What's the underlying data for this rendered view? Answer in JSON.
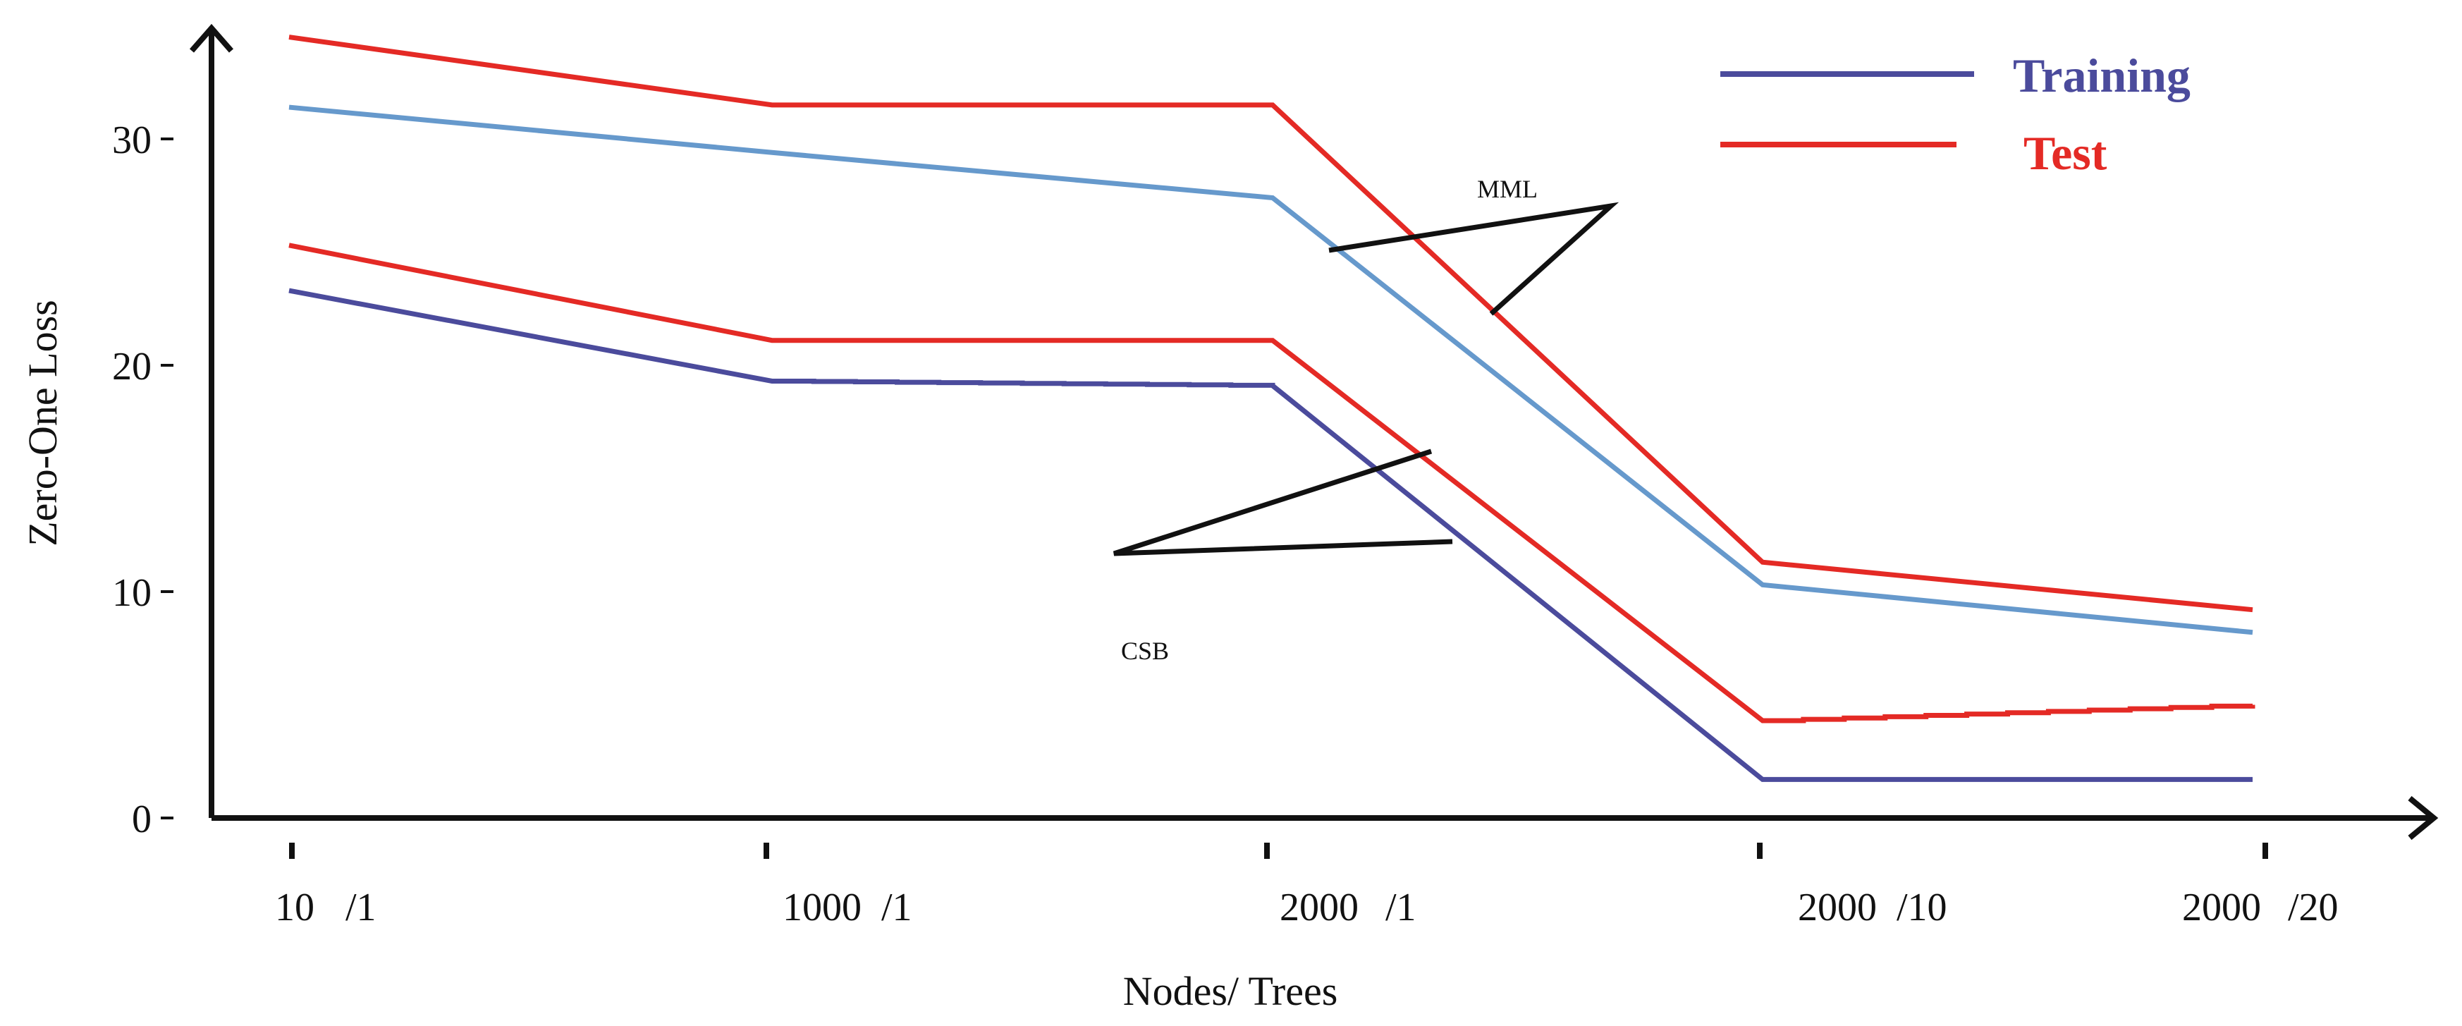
{
  "chart_data": {
    "type": "line",
    "title": "",
    "xlabel": "Nodes/ Trees",
    "ylabel": "Zero-One Loss",
    "ylim": [
      0,
      35
    ],
    "yticks": [
      0,
      10,
      20,
      30
    ],
    "categories": [
      {
        "nodes": "10",
        "trees": "/1"
      },
      {
        "nodes": "1000",
        "trees": "/1"
      },
      {
        "nodes": "2000",
        "trees": "/1"
      },
      {
        "nodes": "2000",
        "trees": "/10"
      },
      {
        "nodes": "2000",
        "trees": "/20"
      }
    ],
    "legend": {
      "position": "top-right",
      "entries": [
        {
          "label": "Training",
          "color": "#4b4b9c"
        },
        {
          "label": "Test",
          "color": "#e42a25"
        }
      ]
    },
    "series": [
      {
        "name": "MML Test",
        "group": "MML",
        "role": "Test",
        "color": "#e42a25",
        "style": "solid",
        "values": [
          34.5,
          31.5,
          31.5,
          11.3,
          9.2
        ]
      },
      {
        "name": "MML Training",
        "group": "MML",
        "role": "Training",
        "color": "#6699cc",
        "style": "solid",
        "values": [
          31.4,
          29.4,
          27.4,
          10.3,
          8.2
        ]
      },
      {
        "name": "CSB Test",
        "group": "CSB",
        "role": "Test",
        "color": "#e42a25",
        "style": "stepped",
        "values": [
          25.3,
          21.1,
          21.1,
          4.3,
          5.0
        ]
      },
      {
        "name": "CSB Training",
        "group": "CSB",
        "role": "Training",
        "color": "#4b4b9c",
        "style": "stepped",
        "values": [
          23.3,
          19.3,
          19.1,
          1.7,
          1.7
        ]
      }
    ],
    "annotations": [
      {
        "label": "MML",
        "points_to": "MML"
      },
      {
        "label": "CSB",
        "points_to": "CSB"
      }
    ]
  }
}
